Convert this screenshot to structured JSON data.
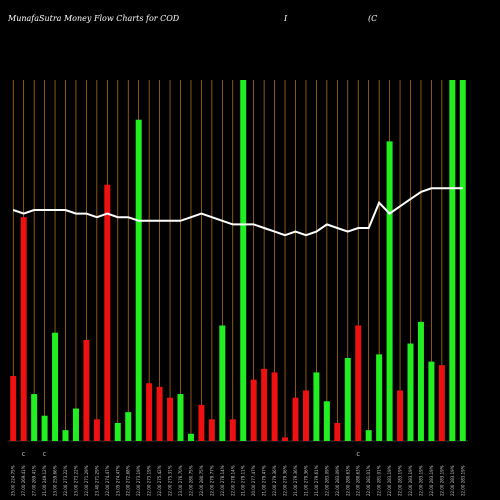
{
  "header": {
    "title": "MunafaSutra  Money Flow  Charts for COD",
    "symbol_suffix": "",
    "extra1": "I",
    "extra2": "(C"
  },
  "colors": {
    "background": "#000000",
    "grid": "#c77c1e",
    "up": "#22ee22",
    "down": "#ee1111",
    "line": "#ffffff"
  },
  "chart_data": {
    "type": "bar",
    "categories": [
      "25.00 224.75%",
      "27.00 269.41%",
      "27.00 269.41%",
      "21.00 249.12%",
      "23.00 259.66%",
      "22.00 273.22%",
      "23.00 273.22%",
      "22.00 271.29%",
      "23.40 271.29%",
      "22.00 274.47%",
      "23.05 274.47%",
      "22.00 272.68%",
      "22.00 273.19%",
      "22.00 273.19%",
      "22.00 275.42%",
      "22.00 275.31%",
      "23.00 276.70%",
      "22.00 280.75%",
      "22.00 280.75%",
      "22.00 279.77%",
      "22.00 278.14%",
      "22.00 278.14%",
      "21.00 279.11%",
      "20.00 277.47%",
      "21.00 279.47%",
      "22.00 279.36%",
      "22.00 279.36%",
      "21.00 279.36%",
      "21.00 279.36%",
      "21.00 279.61%",
      "22.00 283.09%",
      "22.00 283.09%",
      "22.00 280.63%",
      "22.00 280.63%",
      "22.00 281.01%",
      "22.00 281.01%",
      "22.00 283.19%",
      "22.00 283.19%",
      "22.00 283.19%",
      "22.00 283.19%",
      "22.00 283.19%",
      "22.00 283.19%",
      "22.00 283.19%",
      "22.00 283.19%"
    ],
    "series": [
      {
        "values": [
          18,
          62,
          13,
          7,
          30,
          3,
          9,
          28,
          6,
          71,
          5,
          8,
          89,
          16,
          15,
          12,
          13,
          2,
          10,
          6,
          32,
          6,
          100,
          17,
          20,
          19,
          1,
          12,
          14,
          19,
          11,
          5,
          23,
          32,
          3,
          24,
          83,
          14,
          27,
          33,
          22,
          21,
          100,
          100
        ],
        "directions": [
          "down",
          "down",
          "up",
          "up",
          "up",
          "up",
          "up",
          "down",
          "down",
          "down",
          "up",
          "up",
          "up",
          "down",
          "down",
          "down",
          "up",
          "up",
          "down",
          "down",
          "up",
          "down",
          "up",
          "down",
          "down",
          "down",
          "down",
          "down",
          "down",
          "up",
          "up",
          "down",
          "up",
          "down",
          "up",
          "up",
          "up",
          "down",
          "up",
          "up",
          "up",
          "down",
          "up",
          "up"
        ]
      },
      {
        "type": "line",
        "values": [
          64,
          63,
          64,
          64,
          64,
          64,
          63,
          63,
          62,
          63,
          62,
          62,
          61,
          61,
          61,
          61,
          61,
          62,
          63,
          62,
          61,
          60,
          60,
          60,
          59,
          58,
          57,
          58,
          57,
          58,
          60,
          59,
          58,
          59,
          59,
          66,
          63,
          65,
          67,
          69,
          70,
          70,
          70,
          70
        ]
      }
    ],
    "markers": [
      {
        "index": 1,
        "label": "C"
      },
      {
        "index": 3,
        "label": "C"
      },
      {
        "index": 33,
        "label": "C"
      }
    ]
  }
}
